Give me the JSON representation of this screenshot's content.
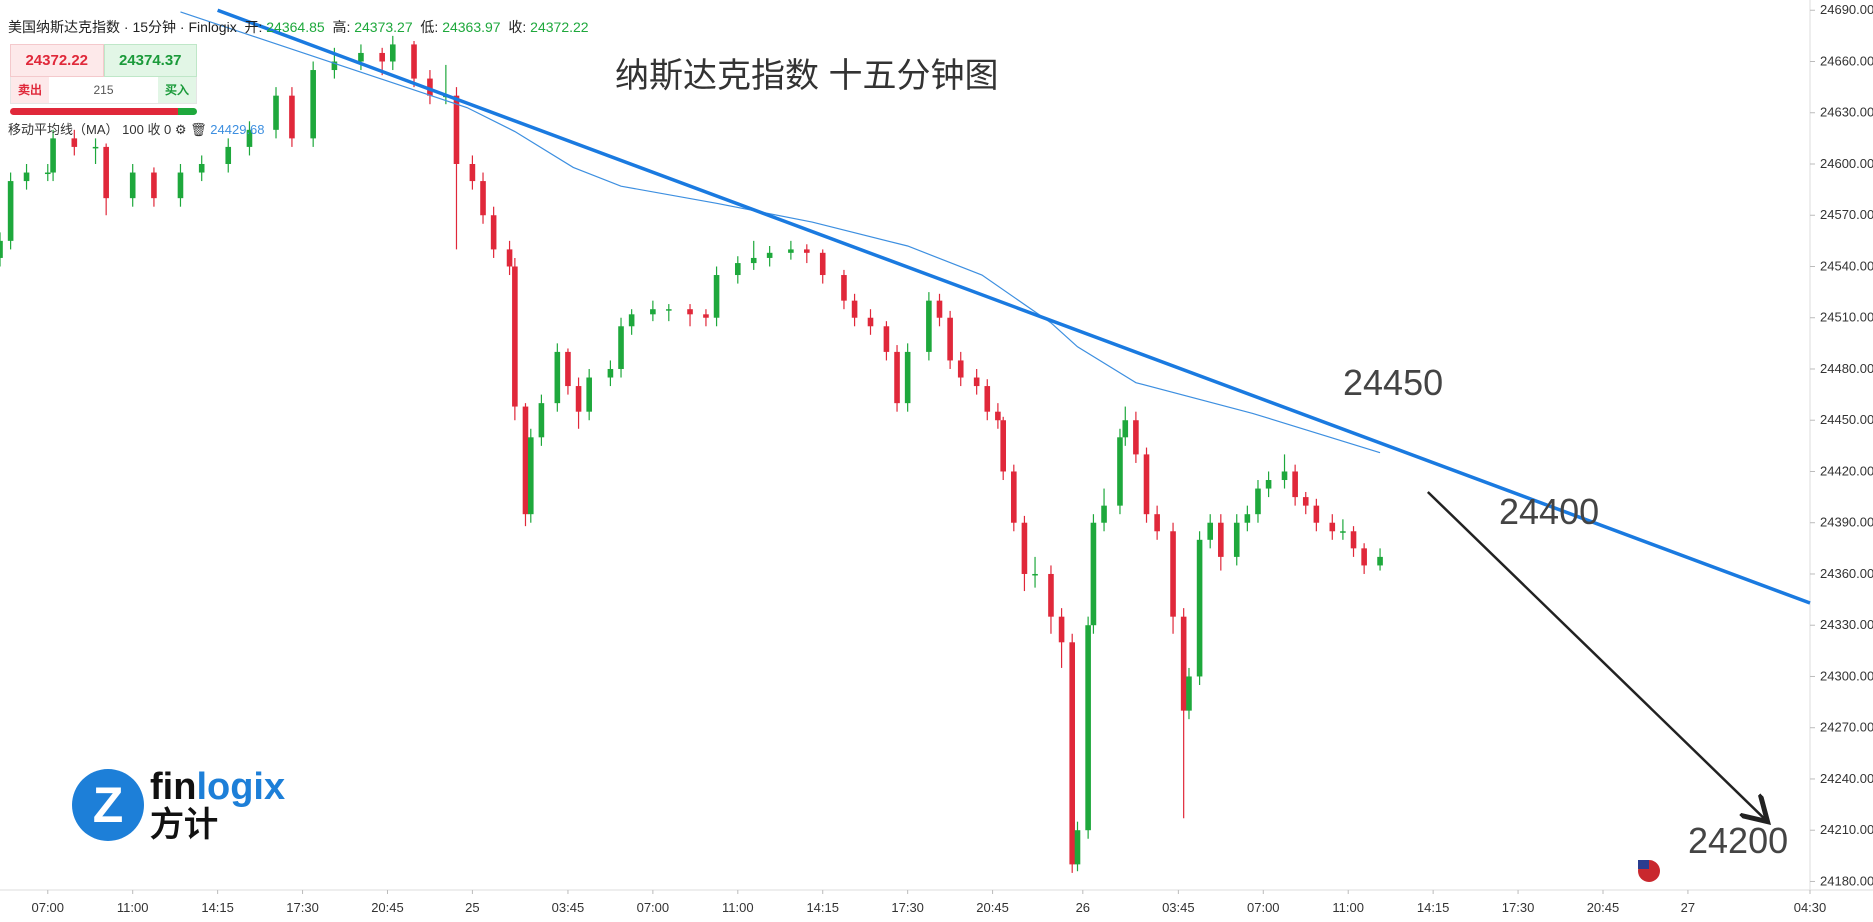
{
  "header": {
    "instrument": "美国纳斯达克指数 · 15分钟 · Finlogix",
    "open_label": "开:",
    "open": 24364.85,
    "high_label": "高:",
    "high": 24373.27,
    "low_label": "低:",
    "low": 24363.97,
    "close_label": "收:",
    "close": 24372.22
  },
  "quote": {
    "sell_price": 24372.22,
    "buy_price": 24374.37,
    "sell_label": "卖出",
    "buy_label": "买入",
    "spread": 215
  },
  "indicator": {
    "label": "移动平均线（MA）",
    "params": "100 收 0",
    "value": 24429.68
  },
  "logo": {
    "word_a": "fin",
    "word_b": "logix",
    "cn": "方计"
  },
  "chart_data": {
    "type": "candlestick",
    "title": "纳斯达克指数 十五分钟图",
    "up_color": "#1ea83c",
    "down_color": "#e0283a",
    "xlim": [
      0,
      341
    ],
    "ylim": [
      24175,
      24696
    ],
    "xticks": [
      {
        "value": 9,
        "label": "07:00"
      },
      {
        "value": 25,
        "label": "11:00"
      },
      {
        "value": 41,
        "label": "14:15"
      },
      {
        "value": 57,
        "label": "17:30"
      },
      {
        "value": 73,
        "label": "20:45"
      },
      {
        "value": 89,
        "label": "25"
      },
      {
        "value": 107,
        "label": "03:45"
      },
      {
        "value": 123,
        "label": "07:00"
      },
      {
        "value": 139,
        "label": "11:00"
      },
      {
        "value": 155,
        "label": "14:15"
      },
      {
        "value": 171,
        "label": "17:30"
      },
      {
        "value": 187,
        "label": "20:45"
      },
      {
        "value": 204,
        "label": "26"
      },
      {
        "value": 222,
        "label": "03:45"
      },
      {
        "value": 238,
        "label": "07:00"
      },
      {
        "value": 254,
        "label": "11:00"
      },
      {
        "value": 270,
        "label": "14:15"
      },
      {
        "value": 286,
        "label": "17:30"
      },
      {
        "value": 302,
        "label": "20:45"
      },
      {
        "value": 318,
        "label": "27"
      },
      {
        "value": 341,
        "label": "04:30"
      }
    ],
    "yticks": [
      {
        "value": 24180,
        "label": "24180.00"
      },
      {
        "value": 24210,
        "label": "24210.00"
      },
      {
        "value": 24240,
        "label": "24240.00"
      },
      {
        "value": 24270,
        "label": "24270.00"
      },
      {
        "value": 24300,
        "label": "24300.00"
      },
      {
        "value": 24330,
        "label": "24330.00"
      },
      {
        "value": 24360,
        "label": "24360.00"
      },
      {
        "value": 24390,
        "label": "24390.00"
      },
      {
        "value": 24420,
        "label": "24420.00"
      },
      {
        "value": 24450,
        "label": "24450.00"
      },
      {
        "value": 24480,
        "label": "24480.00"
      },
      {
        "value": 24510,
        "label": "24510.00"
      },
      {
        "value": 24540,
        "label": "24540.00"
      },
      {
        "value": 24570,
        "label": "24570.00"
      },
      {
        "value": 24600,
        "label": "24600.00"
      },
      {
        "value": 24630,
        "label": "24630.00"
      },
      {
        "value": 24660,
        "label": "24660.00"
      },
      {
        "value": 24690,
        "label": "24690.00"
      }
    ],
    "x": [
      0,
      2,
      5,
      9,
      10,
      14,
      18,
      20,
      25,
      29,
      34,
      38,
      43,
      47,
      52,
      55,
      59,
      63,
      68,
      72,
      74,
      78,
      81,
      84,
      86,
      89,
      91,
      93,
      96,
      97,
      99,
      100,
      102,
      105,
      107,
      109,
      111,
      115,
      117,
      119,
      123,
      126,
      130,
      133,
      135,
      139,
      142,
      145,
      149,
      152,
      155,
      159,
      161,
      164,
      167,
      169,
      171,
      175,
      177,
      179,
      181,
      184,
      186,
      188,
      189,
      191,
      193,
      195,
      198,
      200,
      202,
      203,
      205,
      206,
      208,
      211,
      212,
      214,
      216,
      218,
      221,
      223,
      224,
      226,
      228,
      230,
      233,
      235,
      237,
      239,
      242,
      244,
      246,
      248,
      251,
      253,
      255,
      257,
      260
    ],
    "ohlc": [
      [
        24545,
        24560,
        24540,
        24555
      ],
      [
        24555,
        24595,
        24550,
        24590
      ],
      [
        24590,
        24600,
        24585,
        24595
      ],
      [
        24595,
        24600,
        24590,
        24595
      ],
      [
        24595,
        24620,
        24590,
        24615
      ],
      [
        24615,
        24620,
        24605,
        24610
      ],
      [
        24610,
        24615,
        24600,
        24610
      ],
      [
        24610,
        24612,
        24570,
        24580
      ],
      [
        24580,
        24600,
        24575,
        24595
      ],
      [
        24595,
        24598,
        24575,
        24580
      ],
      [
        24580,
        24600,
        24575,
        24595
      ],
      [
        24595,
        24605,
        24590,
        24600
      ],
      [
        24600,
        24615,
        24595,
        24610
      ],
      [
        24610,
        24625,
        24605,
        24620
      ],
      [
        24620,
        24645,
        24615,
        24640
      ],
      [
        24640,
        24645,
        24610,
        24615
      ],
      [
        24615,
        24660,
        24610,
        24655
      ],
      [
        24655,
        24668,
        24650,
        24660
      ],
      [
        24660,
        24670,
        24655,
        24665
      ],
      [
        24665,
        24668,
        24652,
        24660
      ],
      [
        24660,
        24675,
        24655,
        24670
      ],
      [
        24670,
        24672,
        24645,
        24650
      ],
      [
        24650,
        24655,
        24635,
        24640
      ],
      [
        24640,
        24658,
        24635,
        24640
      ],
      [
        24640,
        24645,
        24550,
        24600
      ],
      [
        24600,
        24605,
        24585,
        24590
      ],
      [
        24590,
        24595,
        24565,
        24570
      ],
      [
        24570,
        24575,
        24545,
        24550
      ],
      [
        24550,
        24555,
        24535,
        24540
      ],
      [
        24540,
        24545,
        24450,
        24458
      ],
      [
        24458,
        24460,
        24388,
        24395
      ],
      [
        24395,
        24445,
        24390,
        24440
      ],
      [
        24440,
        24465,
        24435,
        24460
      ],
      [
        24460,
        24495,
        24455,
        24490
      ],
      [
        24490,
        24492,
        24465,
        24470
      ],
      [
        24470,
        24475,
        24445,
        24455
      ],
      [
        24455,
        24480,
        24450,
        24475
      ],
      [
        24475,
        24485,
        24470,
        24480
      ],
      [
        24480,
        24510,
        24475,
        24505
      ],
      [
        24505,
        24515,
        24500,
        24512
      ],
      [
        24512,
        24520,
        24508,
        24515
      ],
      [
        24515,
        24518,
        24508,
        24515
      ],
      [
        24515,
        24518,
        24505,
        24512
      ],
      [
        24512,
        24515,
        24505,
        24510
      ],
      [
        24510,
        24540,
        24505,
        24535
      ],
      [
        24535,
        24546,
        24530,
        24542
      ],
      [
        24542,
        24555,
        24538,
        24545
      ],
      [
        24545,
        24552,
        24540,
        24548
      ],
      [
        24548,
        24555,
        24544,
        24550
      ],
      [
        24550,
        24553,
        24542,
        24548
      ],
      [
        24548,
        24550,
        24530,
        24535
      ],
      [
        24535,
        24538,
        24515,
        24520
      ],
      [
        24520,
        24524,
        24505,
        24510
      ],
      [
        24510,
        24515,
        24500,
        24505
      ],
      [
        24505,
        24508,
        24485,
        24490
      ],
      [
        24490,
        24494,
        24455,
        24460
      ],
      [
        24460,
        24495,
        24455,
        24490
      ],
      [
        24490,
        24525,
        24485,
        24520
      ],
      [
        24520,
        24524,
        24505,
        24510
      ],
      [
        24510,
        24514,
        24480,
        24485
      ],
      [
        24485,
        24490,
        24470,
        24475
      ],
      [
        24475,
        24480,
        24465,
        24470
      ],
      [
        24470,
        24474,
        24450,
        24455
      ],
      [
        24455,
        24460,
        24445,
        24450
      ],
      [
        24450,
        24452,
        24415,
        24420
      ],
      [
        24420,
        24424,
        24385,
        24390
      ],
      [
        24390,
        24394,
        24350,
        24360
      ],
      [
        24360,
        24370,
        24352,
        24360
      ],
      [
        24360,
        24365,
        24325,
        24335
      ],
      [
        24335,
        24340,
        24305,
        24320
      ],
      [
        24320,
        24325,
        24185,
        24190
      ],
      [
        24190,
        24215,
        24186,
        24210
      ],
      [
        24210,
        24335,
        24205,
        24330
      ],
      [
        24330,
        24395,
        24325,
        24390
      ],
      [
        24390,
        24410,
        24385,
        24400
      ],
      [
        24400,
        24445,
        24395,
        24440
      ],
      [
        24440,
        24458,
        24435,
        24450
      ],
      [
        24450,
        24455,
        24425,
        24430
      ],
      [
        24430,
        24434,
        24390,
        24395
      ],
      [
        24395,
        24400,
        24380,
        24385
      ],
      [
        24385,
        24390,
        24325,
        24335
      ],
      [
        24335,
        24340,
        24217,
        24280
      ],
      [
        24280,
        24305,
        24275,
        24300
      ],
      [
        24300,
        24385,
        24295,
        24380
      ],
      [
        24380,
        24395,
        24375,
        24390
      ],
      [
        24390,
        24395,
        24362,
        24370
      ],
      [
        24370,
        24395,
        24365,
        24390
      ],
      [
        24390,
        24400,
        24385,
        24395
      ],
      [
        24395,
        24415,
        24390,
        24410
      ],
      [
        24410,
        24420,
        24405,
        24415
      ],
      [
        24415,
        24430,
        24410,
        24420
      ],
      [
        24420,
        24424,
        24400,
        24405
      ],
      [
        24405,
        24408,
        24395,
        24400
      ],
      [
        24400,
        24404,
        24385,
        24390
      ],
      [
        24390,
        24395,
        24380,
        24385
      ],
      [
        24385,
        24392,
        24380,
        24385
      ],
      [
        24385,
        24388,
        24370,
        24375
      ],
      [
        24375,
        24378,
        24360,
        24365
      ],
      [
        24365,
        24375,
        24362,
        24370
      ]
    ],
    "ma": {
      "color": "#3d8fe0",
      "x": [
        34,
        88,
        97,
        108,
        117,
        135,
        153,
        171,
        185,
        198,
        203,
        214,
        236,
        260
      ],
      "values": [
        24689,
        24633,
        24619,
        24598,
        24587,
        24577,
        24566,
        24552,
        24535,
        24507,
        24493,
        24472,
        24454,
        24431
      ]
    },
    "trendline": {
      "color": "#1a7ae0",
      "x": [
        41,
        341
      ],
      "values": [
        24690,
        24343
      ]
    },
    "arrow": {
      "color": "#222222",
      "x": [
        269,
        333
      ],
      "values": [
        24408,
        24215
      ]
    },
    "annotations": [
      {
        "text": "24450"
      },
      {
        "text": "24400"
      },
      {
        "text": "24200"
      }
    ]
  }
}
